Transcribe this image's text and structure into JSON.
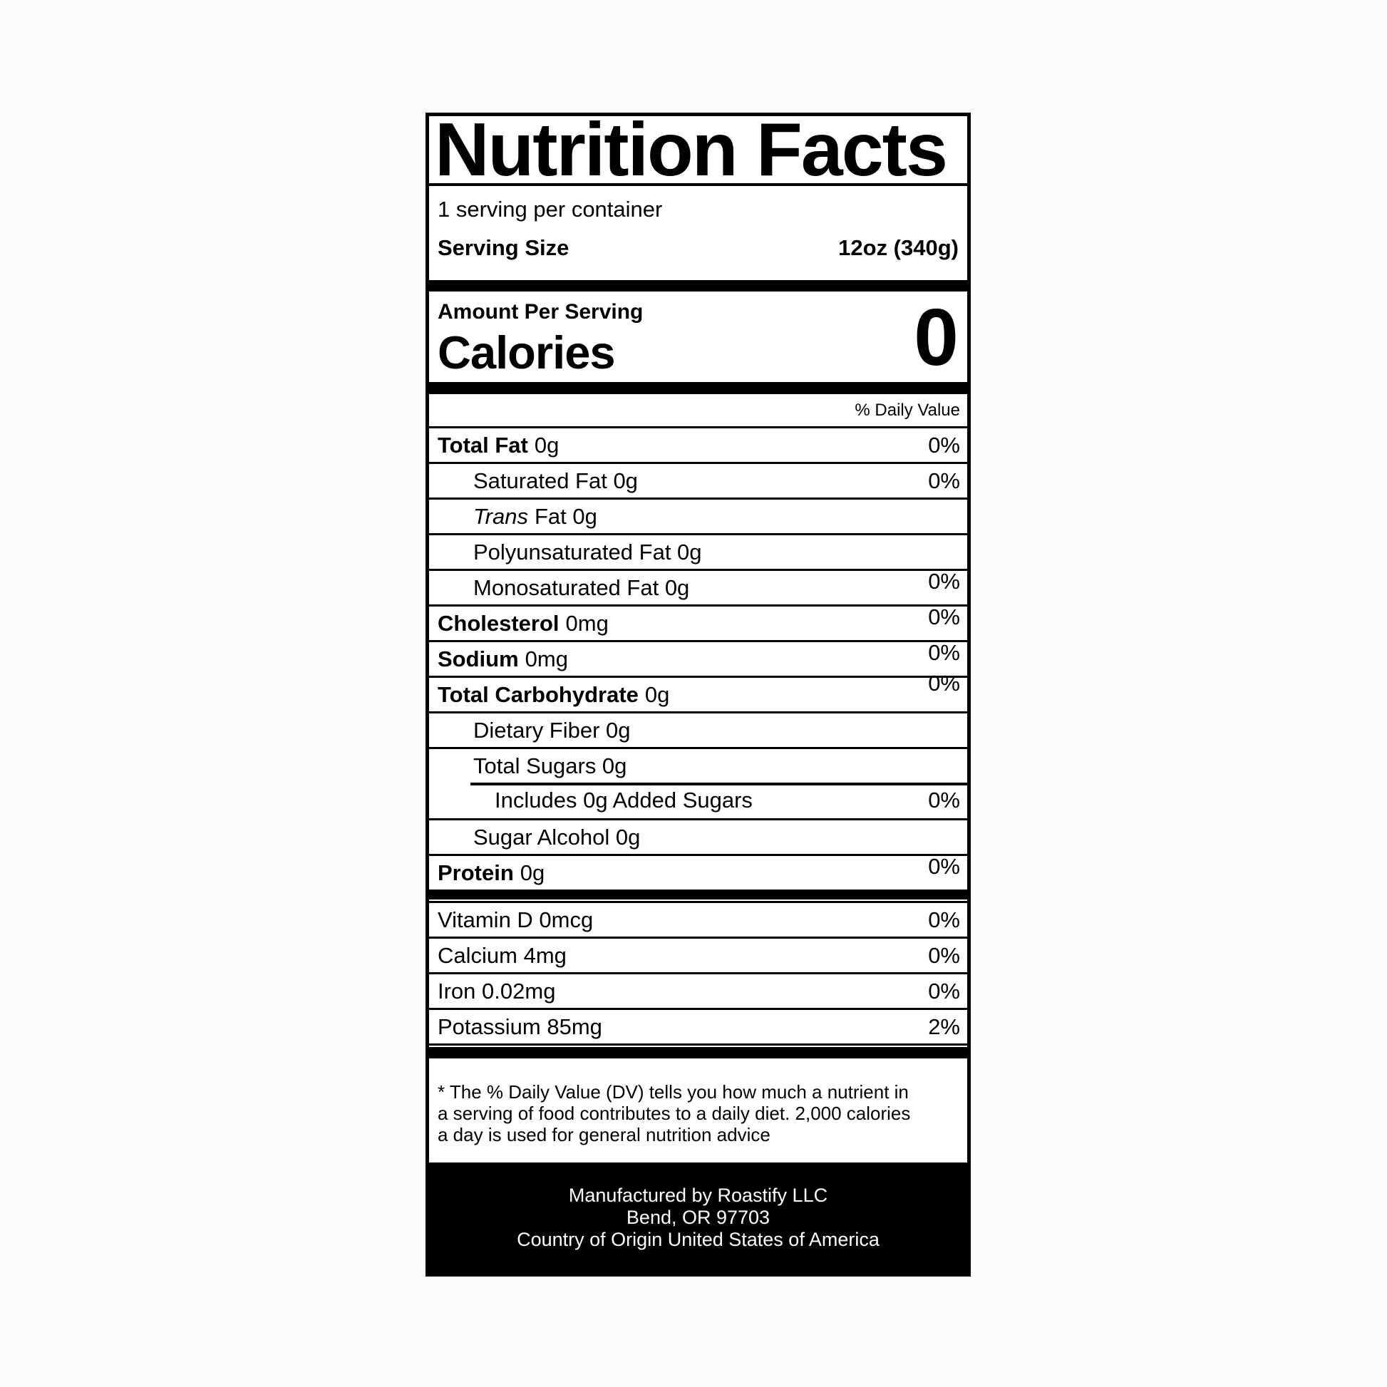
{
  "label": {
    "title": "Nutrition Facts",
    "servings_per_container": "1 serving per container",
    "serving_size": {
      "label": "Serving Size",
      "value": "12oz (340g)"
    },
    "amount_per_serving": "Amount Per Serving",
    "calories": {
      "label": "Calories",
      "value": "0"
    },
    "daily_value_header": "% Daily Value",
    "nutrients": [
      {
        "lead": "Total Fat",
        "bold": true,
        "rest": "0g",
        "dv": "0%",
        "indent": 0
      },
      {
        "lead": "Saturated Fat 0g",
        "rest": "",
        "dv": "0%",
        "indent": 1
      },
      {
        "lead": "Trans",
        "italic": true,
        "rest": "Fat 0g",
        "dv": "",
        "indent": 1
      },
      {
        "lead": "Polyunsaturated Fat 0g",
        "rest": "",
        "dv": "",
        "indent": 1
      },
      {
        "lead": "Monosaturated Fat 0g",
        "rest": "",
        "dv": "0%",
        "indent": 1
      },
      {
        "lead": "Cholesterol",
        "bold": true,
        "rest": "0mg",
        "dv": "0%",
        "indent": 0
      },
      {
        "lead": "Sodium",
        "bold": true,
        "rest": "0mg",
        "dv": "0%",
        "indent": 0
      },
      {
        "lead": "Total Carbohydrate",
        "bold": true,
        "rest": "0g",
        "dv": "0%",
        "indent": 0
      },
      {
        "lead": "Dietary Fiber 0g",
        "rest": "",
        "dv": "",
        "indent": 1
      },
      {
        "lead": "Total Sugars 0g",
        "rest": "",
        "dv": "",
        "indent": 1
      },
      {
        "lead": "Includes 0g Added Sugars",
        "rest": "",
        "dv": "0%",
        "indent": 2,
        "rule": "indent"
      },
      {
        "lead": "Sugar Alcohol 0g",
        "rest": "",
        "dv": "",
        "indent": 1
      },
      {
        "lead": "Protein",
        "bold": true,
        "rest": "0g",
        "dv": "0%",
        "indent": 0
      }
    ],
    "vitamins": [
      {
        "name": "Vitamin D 0mcg",
        "dv": "0%"
      },
      {
        "name": "Calcium 4mg",
        "dv": "0%"
      },
      {
        "name": "Iron 0.02mg",
        "dv": "0%"
      },
      {
        "name": "Potassium 85mg",
        "dv": "2%"
      }
    ],
    "footnote_lines": [
      "* The % Daily Value (DV) tells you how much a nutrient in",
      "a serving of food contributes to a daily diet. 2,000 calories",
      "a day is used for general nutrition advice"
    ],
    "footer_lines": [
      "Manufactured by Roastify LLC",
      "Bend, OR 97703",
      "Country of Origin United States of America"
    ],
    "colors": {
      "ink": "#000000",
      "paper": "#ffffff",
      "page_bg": "#fcfcfc"
    }
  }
}
